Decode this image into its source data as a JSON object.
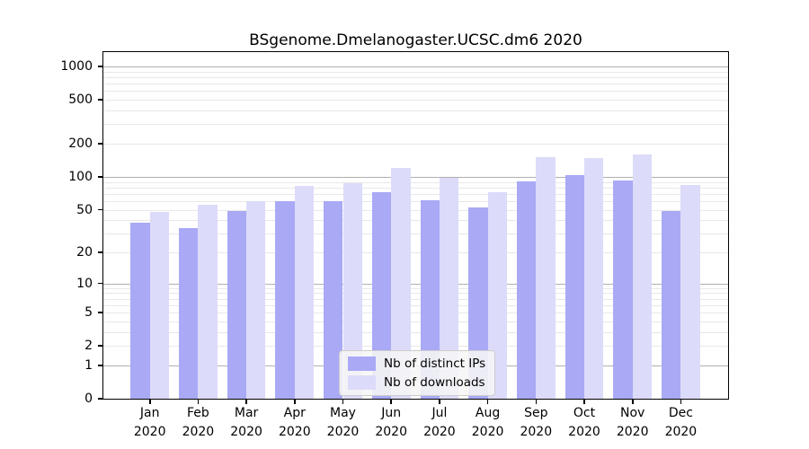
{
  "chart_data": {
    "type": "bar",
    "title": "BSgenome.Dmelanogaster.UCSC.dm6 2020",
    "categories": [
      "Jan",
      "Feb",
      "Mar",
      "Apr",
      "May",
      "Jun",
      "Jul",
      "Aug",
      "Sep",
      "Oct",
      "Nov",
      "Dec"
    ],
    "year_label": "2020",
    "series": [
      {
        "name": "Nb of distinct IPs",
        "color": "#a9a9f6",
        "values": [
          38,
          34,
          49,
          60,
          60,
          73,
          61,
          52,
          91,
          103,
          92,
          49
        ]
      },
      {
        "name": "Nb of downloads",
        "color": "#dcdbf9",
        "values": [
          48,
          55,
          60,
          82,
          87,
          120,
          98,
          72,
          150,
          149,
          161,
          85
        ]
      }
    ],
    "yscale": "log1p",
    "ylim": [
      0,
      1350
    ],
    "yticks": [
      0,
      1,
      2,
      5,
      10,
      20,
      50,
      100,
      200,
      500,
      1000
    ],
    "grid": {
      "major_lines": [
        1,
        10,
        100,
        1000
      ],
      "minor_lines_rule": "2-9 per decade",
      "orientation": "horizontal"
    },
    "legend_position": "lower center",
    "colors": {
      "background": "#ffffff",
      "major_grid": "#b0b0b0",
      "minor_grid": "#e8e8e8",
      "axis": "#000000"
    }
  }
}
